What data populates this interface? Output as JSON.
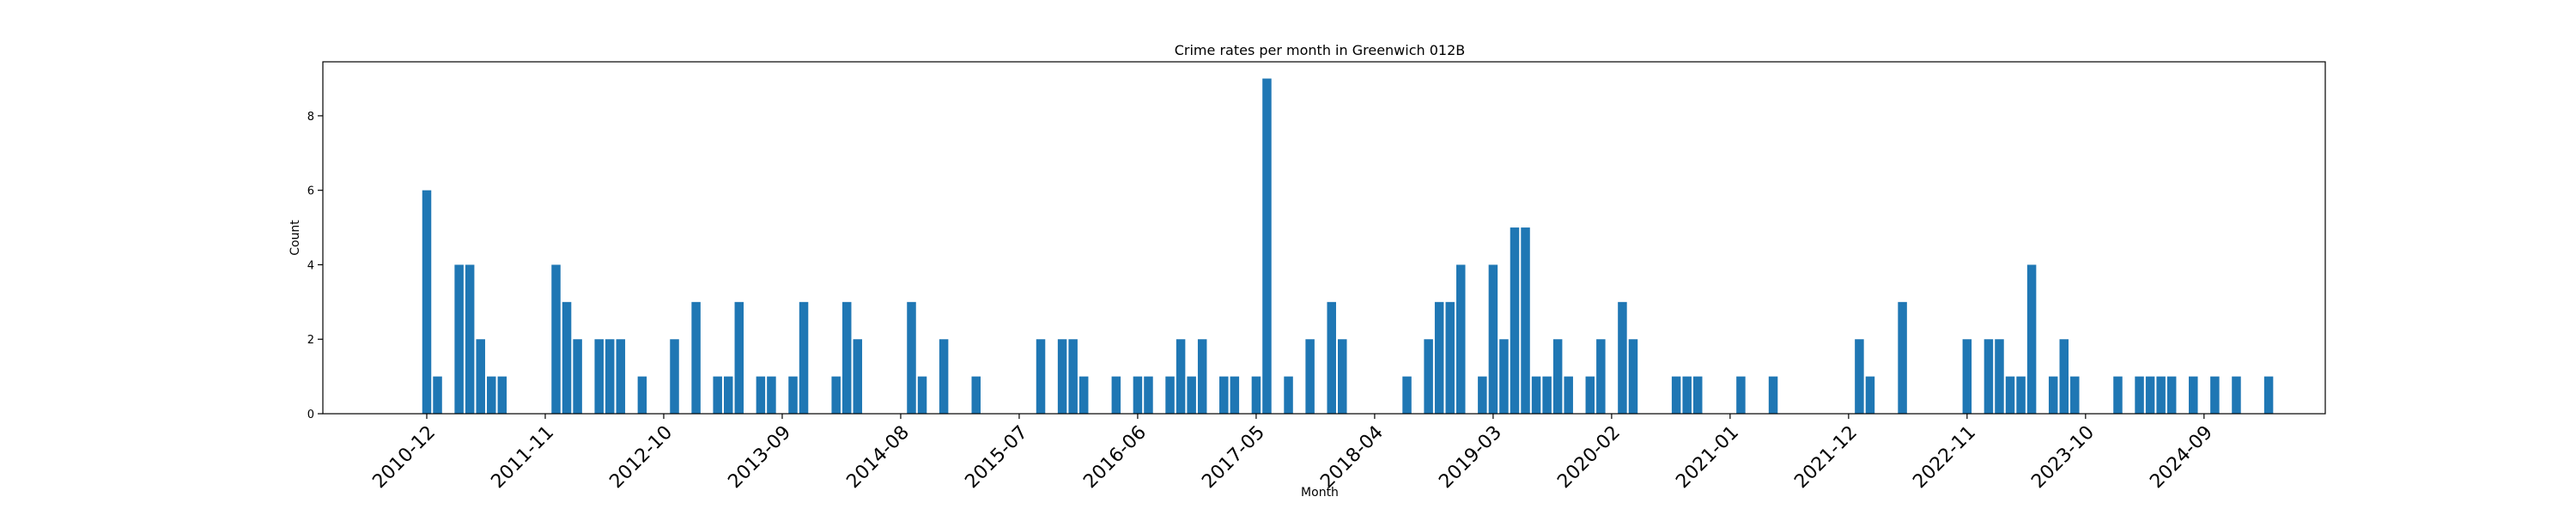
{
  "chart_data": {
    "type": "bar",
    "title": "Crime rates per month in Greenwich 012B",
    "xlabel": "Month",
    "ylabel": "Count",
    "ylim": [
      0,
      9.45
    ],
    "yticks": [
      0,
      2,
      4,
      6,
      8
    ],
    "x_start": "2010-12",
    "x_end": "2025-01",
    "xticks": [
      "2010-12",
      "2011-11",
      "2012-10",
      "2013-09",
      "2014-08",
      "2015-07",
      "2016-06",
      "2017-05",
      "2018-04",
      "2019-03",
      "2020-02",
      "2021-01",
      "2021-12",
      "2022-11",
      "2023-10",
      "2024-09"
    ],
    "color": "#1f77b4",
    "bars": [
      {
        "x": "2010-12",
        "y": 6
      },
      {
        "x": "2011-01",
        "y": 1
      },
      {
        "x": "2011-03",
        "y": 4
      },
      {
        "x": "2011-04",
        "y": 4
      },
      {
        "x": "2011-05",
        "y": 2
      },
      {
        "x": "2011-06",
        "y": 1
      },
      {
        "x": "2011-07",
        "y": 1
      },
      {
        "x": "2011-12",
        "y": 4
      },
      {
        "x": "2012-01",
        "y": 3
      },
      {
        "x": "2012-02",
        "y": 2
      },
      {
        "x": "2012-04",
        "y": 2
      },
      {
        "x": "2012-05",
        "y": 2
      },
      {
        "x": "2012-06",
        "y": 2
      },
      {
        "x": "2012-08",
        "y": 1
      },
      {
        "x": "2012-11",
        "y": 2
      },
      {
        "x": "2013-01",
        "y": 3
      },
      {
        "x": "2013-03",
        "y": 1
      },
      {
        "x": "2013-04",
        "y": 1
      },
      {
        "x": "2013-05",
        "y": 3
      },
      {
        "x": "2013-07",
        "y": 1
      },
      {
        "x": "2013-08",
        "y": 1
      },
      {
        "x": "2013-10",
        "y": 1
      },
      {
        "x": "2013-11",
        "y": 3
      },
      {
        "x": "2014-02",
        "y": 1
      },
      {
        "x": "2014-03",
        "y": 3
      },
      {
        "x": "2014-04",
        "y": 2
      },
      {
        "x": "2014-09",
        "y": 3
      },
      {
        "x": "2014-10",
        "y": 1
      },
      {
        "x": "2014-12",
        "y": 2
      },
      {
        "x": "2015-03",
        "y": 1
      },
      {
        "x": "2015-09",
        "y": 2
      },
      {
        "x": "2015-11",
        "y": 2
      },
      {
        "x": "2015-12",
        "y": 2
      },
      {
        "x": "2016-01",
        "y": 1
      },
      {
        "x": "2016-04",
        "y": 1
      },
      {
        "x": "2016-06",
        "y": 1
      },
      {
        "x": "2016-07",
        "y": 1
      },
      {
        "x": "2016-09",
        "y": 1
      },
      {
        "x": "2016-10",
        "y": 2
      },
      {
        "x": "2016-11",
        "y": 1
      },
      {
        "x": "2016-12",
        "y": 2
      },
      {
        "x": "2017-02",
        "y": 1
      },
      {
        "x": "2017-03",
        "y": 1
      },
      {
        "x": "2017-05",
        "y": 1
      },
      {
        "x": "2017-06",
        "y": 9
      },
      {
        "x": "2017-08",
        "y": 1
      },
      {
        "x": "2017-10",
        "y": 2
      },
      {
        "x": "2017-12",
        "y": 3
      },
      {
        "x": "2018-01",
        "y": 2
      },
      {
        "x": "2018-07",
        "y": 1
      },
      {
        "x": "2018-09",
        "y": 2
      },
      {
        "x": "2018-10",
        "y": 3
      },
      {
        "x": "2018-11",
        "y": 3
      },
      {
        "x": "2018-12",
        "y": 4
      },
      {
        "x": "2019-02",
        "y": 1
      },
      {
        "x": "2019-03",
        "y": 4
      },
      {
        "x": "2019-04",
        "y": 2
      },
      {
        "x": "2019-05",
        "y": 5
      },
      {
        "x": "2019-06",
        "y": 5
      },
      {
        "x": "2019-07",
        "y": 1
      },
      {
        "x": "2019-08",
        "y": 1
      },
      {
        "x": "2019-09",
        "y": 2
      },
      {
        "x": "2019-10",
        "y": 1
      },
      {
        "x": "2019-12",
        "y": 1
      },
      {
        "x": "2020-01",
        "y": 2
      },
      {
        "x": "2020-03",
        "y": 3
      },
      {
        "x": "2020-04",
        "y": 2
      },
      {
        "x": "2020-08",
        "y": 1
      },
      {
        "x": "2020-09",
        "y": 1
      },
      {
        "x": "2020-10",
        "y": 1
      },
      {
        "x": "2021-02",
        "y": 1
      },
      {
        "x": "2021-05",
        "y": 1
      },
      {
        "x": "2022-01",
        "y": 2
      },
      {
        "x": "2022-02",
        "y": 1
      },
      {
        "x": "2022-05",
        "y": 3
      },
      {
        "x": "2022-11",
        "y": 2
      },
      {
        "x": "2023-01",
        "y": 2
      },
      {
        "x": "2023-02",
        "y": 2
      },
      {
        "x": "2023-03",
        "y": 1
      },
      {
        "x": "2023-04",
        "y": 1
      },
      {
        "x": "2023-05",
        "y": 4
      },
      {
        "x": "2023-07",
        "y": 1
      },
      {
        "x": "2023-08",
        "y": 2
      },
      {
        "x": "2023-09",
        "y": 1
      },
      {
        "x": "2024-01",
        "y": 1
      },
      {
        "x": "2024-03",
        "y": 1
      },
      {
        "x": "2024-04",
        "y": 1
      },
      {
        "x": "2024-05",
        "y": 1
      },
      {
        "x": "2024-06",
        "y": 1
      },
      {
        "x": "2024-08",
        "y": 1
      },
      {
        "x": "2024-10",
        "y": 1
      },
      {
        "x": "2024-12",
        "y": 1
      },
      {
        "x": "2025-03",
        "y": 1
      }
    ]
  }
}
